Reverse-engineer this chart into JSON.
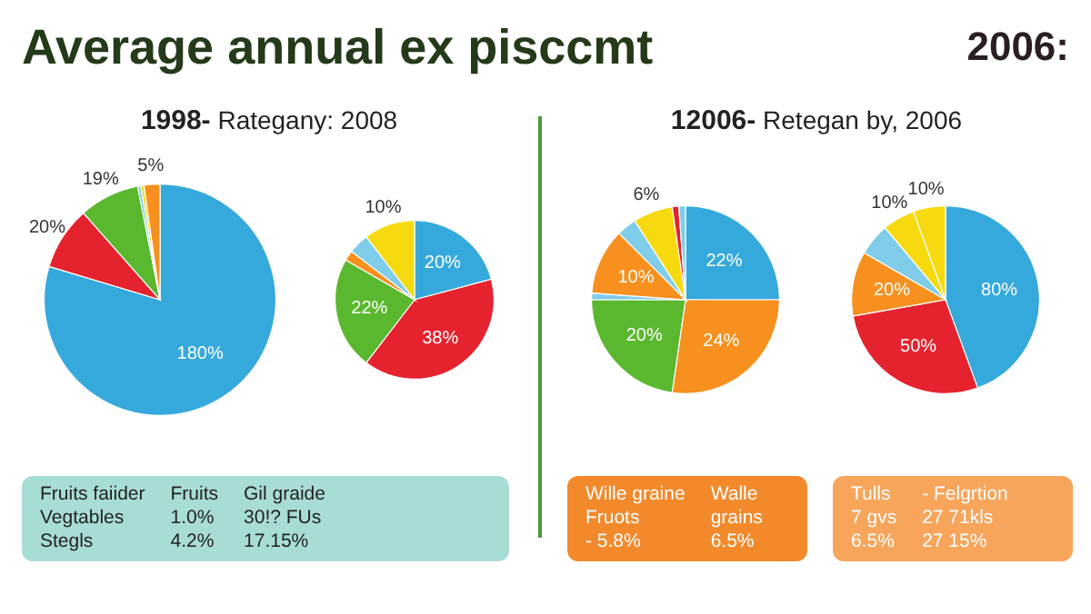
{
  "chart_data": [
    {
      "type": "other",
      "title": "Average annual ex pisccmt",
      "annotations": [
        "2006:"
      ]
    },
    {
      "type": "pie",
      "title": "1998- Rategany: 2008",
      "categories": [
        null,
        null,
        null,
        null,
        null,
        null
      ],
      "values": [
        180,
        20,
        19,
        1,
        1,
        5
      ],
      "value_labels": [
        "180%",
        "20%",
        "19%",
        null,
        null,
        "5%"
      ],
      "colors": [
        "#35a9dc",
        "#e5232e",
        "#5ab82e",
        "#7fcde8",
        "#f7d90f",
        "#f7901e"
      ],
      "legend": false,
      "annotations": [
        "Fruits faiider",
        "Vegtables",
        "Stegls",
        "Fruits",
        "1.0%",
        "4.2%",
        "Gil graide",
        "30!? FUs",
        "17.15%"
      ]
    },
    {
      "type": "pie",
      "categories": [
        null,
        null,
        null,
        null,
        null,
        null
      ],
      "values": [
        20,
        38,
        22,
        2,
        4,
        10
      ],
      "value_labels": [
        "20%",
        "38%",
        "22%",
        null,
        null,
        "10%"
      ],
      "colors": [
        "#35a9dc",
        "#e5232e",
        "#5ab82e",
        "#f7901e",
        "#7fcde8",
        "#f7d90f"
      ],
      "legend": false
    },
    {
      "type": "pie",
      "title": "12006- Retegan by, 2006",
      "categories": [
        null,
        null,
        null,
        null,
        null,
        null,
        null,
        null,
        null
      ],
      "values": [
        22,
        24,
        20,
        1,
        10,
        3,
        6,
        1,
        1
      ],
      "value_labels": [
        "22%",
        "24%",
        "20%",
        null,
        "10%",
        null,
        "6%",
        null,
        null
      ],
      "colors": [
        "#35a9dc",
        "#f7901e",
        "#5ab82e",
        "#7fcde8",
        "#f7901e",
        "#7fcde8",
        "#f7d90f",
        "#e5232e",
        "#7fcde8"
      ],
      "legend": false,
      "annotations": [
        "Wille graine",
        "Fruots",
        "- 5.8%",
        "Walle",
        "grains",
        "6.5%"
      ]
    },
    {
      "type": "pie",
      "categories": [
        null,
        null,
        null,
        null,
        null,
        null
      ],
      "values": [
        80,
        50,
        20,
        10,
        10,
        10
      ],
      "value_labels": [
        "80%",
        "50%",
        "20%",
        null,
        "10%",
        "10%"
      ],
      "colors": [
        "#35a9dc",
        "#e5232e",
        "#f7901e",
        "#7fcde8",
        "#f7d90f",
        "#f7d90f"
      ],
      "legend": false,
      "annotations": [
        "Tulls",
        "7 gvs",
        "6.5%",
        "- Felgrtion",
        "27 71kls",
        "27 15%"
      ]
    }
  ]
}
